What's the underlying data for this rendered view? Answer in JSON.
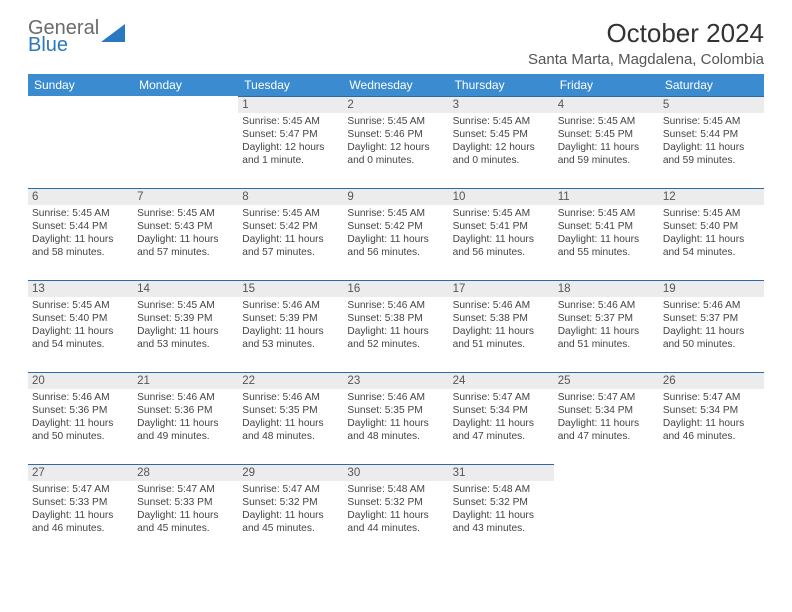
{
  "brand": {
    "word1": "General",
    "word2": "Blue"
  },
  "title": {
    "month": "October 2024",
    "location": "Santa Marta, Magdalena, Colombia"
  },
  "colors": {
    "header_bg": "#3b8bd0",
    "header_text": "#ffffff",
    "daynum_bg": "#ececec",
    "border": "#2a6aa5",
    "logo_gray": "#6b6b6b",
    "logo_blue": "#2a78c2"
  },
  "dow": [
    "Sunday",
    "Monday",
    "Tuesday",
    "Wednesday",
    "Thursday",
    "Friday",
    "Saturday"
  ],
  "weeks": [
    [
      null,
      null,
      {
        "n": "1",
        "sunrise": "Sunrise: 5:45 AM",
        "sunset": "Sunset: 5:47 PM",
        "daylight": "Daylight: 12 hours and 1 minute."
      },
      {
        "n": "2",
        "sunrise": "Sunrise: 5:45 AM",
        "sunset": "Sunset: 5:46 PM",
        "daylight": "Daylight: 12 hours and 0 minutes."
      },
      {
        "n": "3",
        "sunrise": "Sunrise: 5:45 AM",
        "sunset": "Sunset: 5:45 PM",
        "daylight": "Daylight: 12 hours and 0 minutes."
      },
      {
        "n": "4",
        "sunrise": "Sunrise: 5:45 AM",
        "sunset": "Sunset: 5:45 PM",
        "daylight": "Daylight: 11 hours and 59 minutes."
      },
      {
        "n": "5",
        "sunrise": "Sunrise: 5:45 AM",
        "sunset": "Sunset: 5:44 PM",
        "daylight": "Daylight: 11 hours and 59 minutes."
      }
    ],
    [
      {
        "n": "6",
        "sunrise": "Sunrise: 5:45 AM",
        "sunset": "Sunset: 5:44 PM",
        "daylight": "Daylight: 11 hours and 58 minutes."
      },
      {
        "n": "7",
        "sunrise": "Sunrise: 5:45 AM",
        "sunset": "Sunset: 5:43 PM",
        "daylight": "Daylight: 11 hours and 57 minutes."
      },
      {
        "n": "8",
        "sunrise": "Sunrise: 5:45 AM",
        "sunset": "Sunset: 5:42 PM",
        "daylight": "Daylight: 11 hours and 57 minutes."
      },
      {
        "n": "9",
        "sunrise": "Sunrise: 5:45 AM",
        "sunset": "Sunset: 5:42 PM",
        "daylight": "Daylight: 11 hours and 56 minutes."
      },
      {
        "n": "10",
        "sunrise": "Sunrise: 5:45 AM",
        "sunset": "Sunset: 5:41 PM",
        "daylight": "Daylight: 11 hours and 56 minutes."
      },
      {
        "n": "11",
        "sunrise": "Sunrise: 5:45 AM",
        "sunset": "Sunset: 5:41 PM",
        "daylight": "Daylight: 11 hours and 55 minutes."
      },
      {
        "n": "12",
        "sunrise": "Sunrise: 5:45 AM",
        "sunset": "Sunset: 5:40 PM",
        "daylight": "Daylight: 11 hours and 54 minutes."
      }
    ],
    [
      {
        "n": "13",
        "sunrise": "Sunrise: 5:45 AM",
        "sunset": "Sunset: 5:40 PM",
        "daylight": "Daylight: 11 hours and 54 minutes."
      },
      {
        "n": "14",
        "sunrise": "Sunrise: 5:45 AM",
        "sunset": "Sunset: 5:39 PM",
        "daylight": "Daylight: 11 hours and 53 minutes."
      },
      {
        "n": "15",
        "sunrise": "Sunrise: 5:46 AM",
        "sunset": "Sunset: 5:39 PM",
        "daylight": "Daylight: 11 hours and 53 minutes."
      },
      {
        "n": "16",
        "sunrise": "Sunrise: 5:46 AM",
        "sunset": "Sunset: 5:38 PM",
        "daylight": "Daylight: 11 hours and 52 minutes."
      },
      {
        "n": "17",
        "sunrise": "Sunrise: 5:46 AM",
        "sunset": "Sunset: 5:38 PM",
        "daylight": "Daylight: 11 hours and 51 minutes."
      },
      {
        "n": "18",
        "sunrise": "Sunrise: 5:46 AM",
        "sunset": "Sunset: 5:37 PM",
        "daylight": "Daylight: 11 hours and 51 minutes."
      },
      {
        "n": "19",
        "sunrise": "Sunrise: 5:46 AM",
        "sunset": "Sunset: 5:37 PM",
        "daylight": "Daylight: 11 hours and 50 minutes."
      }
    ],
    [
      {
        "n": "20",
        "sunrise": "Sunrise: 5:46 AM",
        "sunset": "Sunset: 5:36 PM",
        "daylight": "Daylight: 11 hours and 50 minutes."
      },
      {
        "n": "21",
        "sunrise": "Sunrise: 5:46 AM",
        "sunset": "Sunset: 5:36 PM",
        "daylight": "Daylight: 11 hours and 49 minutes."
      },
      {
        "n": "22",
        "sunrise": "Sunrise: 5:46 AM",
        "sunset": "Sunset: 5:35 PM",
        "daylight": "Daylight: 11 hours and 48 minutes."
      },
      {
        "n": "23",
        "sunrise": "Sunrise: 5:46 AM",
        "sunset": "Sunset: 5:35 PM",
        "daylight": "Daylight: 11 hours and 48 minutes."
      },
      {
        "n": "24",
        "sunrise": "Sunrise: 5:47 AM",
        "sunset": "Sunset: 5:34 PM",
        "daylight": "Daylight: 11 hours and 47 minutes."
      },
      {
        "n": "25",
        "sunrise": "Sunrise: 5:47 AM",
        "sunset": "Sunset: 5:34 PM",
        "daylight": "Daylight: 11 hours and 47 minutes."
      },
      {
        "n": "26",
        "sunrise": "Sunrise: 5:47 AM",
        "sunset": "Sunset: 5:34 PM",
        "daylight": "Daylight: 11 hours and 46 minutes."
      }
    ],
    [
      {
        "n": "27",
        "sunrise": "Sunrise: 5:47 AM",
        "sunset": "Sunset: 5:33 PM",
        "daylight": "Daylight: 11 hours and 46 minutes."
      },
      {
        "n": "28",
        "sunrise": "Sunrise: 5:47 AM",
        "sunset": "Sunset: 5:33 PM",
        "daylight": "Daylight: 11 hours and 45 minutes."
      },
      {
        "n": "29",
        "sunrise": "Sunrise: 5:47 AM",
        "sunset": "Sunset: 5:32 PM",
        "daylight": "Daylight: 11 hours and 45 minutes."
      },
      {
        "n": "30",
        "sunrise": "Sunrise: 5:48 AM",
        "sunset": "Sunset: 5:32 PM",
        "daylight": "Daylight: 11 hours and 44 minutes."
      },
      {
        "n": "31",
        "sunrise": "Sunrise: 5:48 AM",
        "sunset": "Sunset: 5:32 PM",
        "daylight": "Daylight: 11 hours and 43 minutes."
      },
      null,
      null
    ]
  ]
}
